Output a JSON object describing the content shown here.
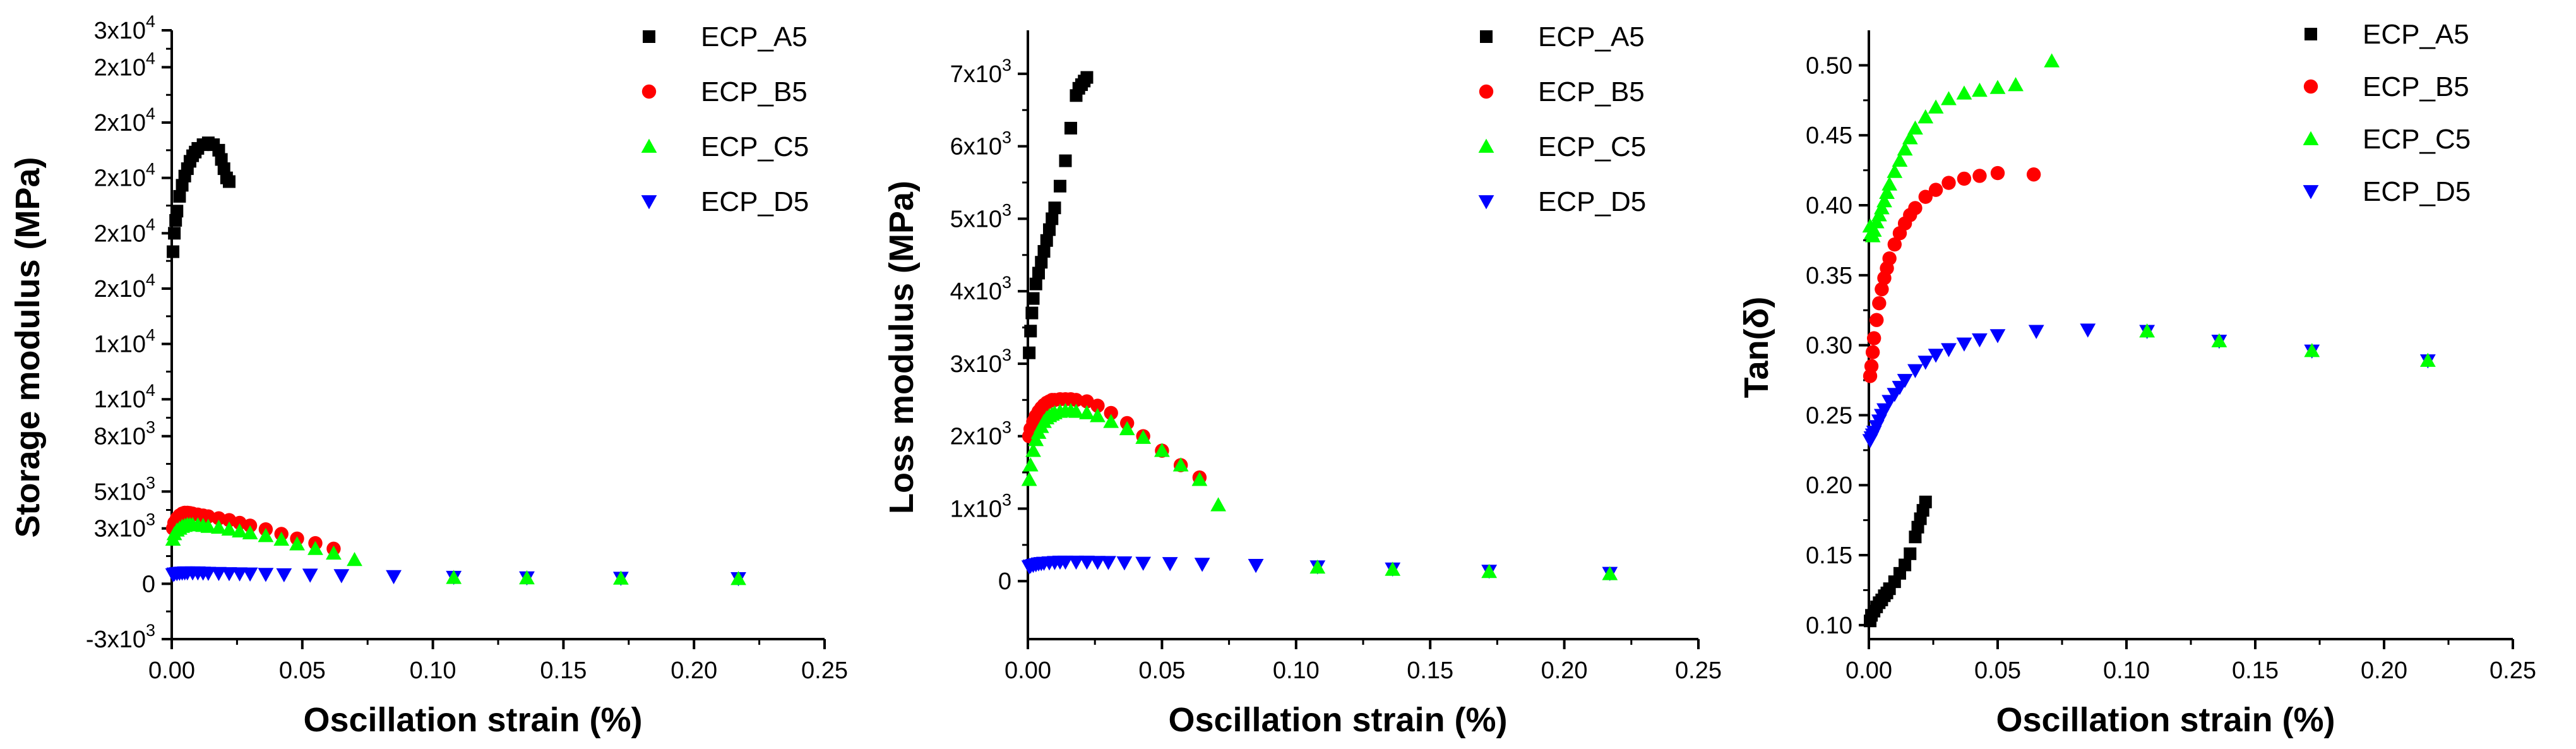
{
  "chart_data": [
    {
      "type": "scatter",
      "id": "storage",
      "title": "",
      "xlabel": "Oscillation strain (%)",
      "ylabel": "Storage modulus (MPa)",
      "xlim": [
        0,
        0.25
      ],
      "ylim": [
        -3000,
        30000
      ],
      "x_ticks": [
        0.0,
        0.05,
        0.1,
        0.15,
        0.2,
        0.25
      ],
      "x_tick_labels": [
        "0.00",
        "0.05",
        "0.10",
        "0.15",
        "0.20",
        "0.25"
      ],
      "y_ticks": [
        -3000,
        0,
        3000,
        5000,
        8000,
        10000,
        13000,
        16000,
        19000,
        22000,
        25000,
        28000,
        30000
      ],
      "y_tick_labels": [
        {
          "base": "-3x10",
          "exp": "3"
        },
        {
          "base": "0",
          "exp": ""
        },
        {
          "base": "3x10",
          "exp": "3"
        },
        {
          "base": "5x10",
          "exp": "3"
        },
        {
          "base": "8x10",
          "exp": "3"
        },
        {
          "base": "1x10",
          "exp": "4"
        },
        {
          "base": "1x10",
          "exp": "4"
        },
        {
          "base": "2x10",
          "exp": "4"
        },
        {
          "base": "2x10",
          "exp": "4"
        },
        {
          "base": "2x10",
          "exp": "4"
        },
        {
          "base": "2x10",
          "exp": "4"
        },
        {
          "base": "2x10",
          "exp": "4"
        },
        {
          "base": "3x10",
          "exp": "4"
        }
      ],
      "legend_position": "top-right",
      "series": [
        {
          "name": "ECP_A5",
          "color": "#000000",
          "marker": "square",
          "x": [
            0.0005,
            0.001,
            0.0015,
            0.002,
            0.003,
            0.004,
            0.005,
            0.006,
            0.007,
            0.008,
            0.009,
            0.01,
            0.012,
            0.014,
            0.016,
            0.018,
            0.019,
            0.02,
            0.021,
            0.022
          ],
          "y": [
            18000,
            19000,
            19700,
            20200,
            21000,
            21600,
            22100,
            22500,
            22900,
            23200,
            23400,
            23600,
            23800,
            23900,
            23800,
            23500,
            23000,
            22500,
            22000,
            21800
          ]
        },
        {
          "name": "ECP_B5",
          "color": "#ff0000",
          "marker": "circle",
          "x": [
            0.0005,
            0.001,
            0.002,
            0.003,
            0.004,
            0.005,
            0.006,
            0.007,
            0.008,
            0.01,
            0.012,
            0.014,
            0.018,
            0.022,
            0.026,
            0.03,
            0.036,
            0.042,
            0.048,
            0.055,
            0.062
          ],
          "y": [
            3000,
            3300,
            3550,
            3700,
            3800,
            3850,
            3850,
            3830,
            3800,
            3750,
            3700,
            3650,
            3550,
            3450,
            3300,
            3150,
            2950,
            2700,
            2450,
            2200,
            1900
          ]
        },
        {
          "name": "ECP_C5",
          "color": "#00ff00",
          "marker": "triangle-up",
          "x": [
            0.0005,
            0.001,
            0.002,
            0.003,
            0.004,
            0.005,
            0.006,
            0.007,
            0.008,
            0.01,
            0.012,
            0.014,
            0.018,
            0.022,
            0.026,
            0.03,
            0.036,
            0.042,
            0.048,
            0.055,
            0.062,
            0.07
          ],
          "y": [
            2400,
            2700,
            2900,
            3000,
            3100,
            3150,
            3200,
            3200,
            3200,
            3180,
            3150,
            3100,
            3050,
            2950,
            2850,
            2750,
            2600,
            2400,
            2150,
            1900,
            1650,
            1300
          ]
        },
        {
          "name": "ECP_D5",
          "color": "#0000ff",
          "marker": "triangle-down",
          "x": [
            0.0005,
            0.001,
            0.002,
            0.003,
            0.004,
            0.005,
            0.006,
            0.008,
            0.01,
            0.012,
            0.014,
            0.018,
            0.022,
            0.026,
            0.03,
            0.036,
            0.043,
            0.053,
            0.065,
            0.085,
            0.108,
            0.136,
            0.172,
            0.217
          ],
          "y": [
            500,
            540,
            560,
            580,
            590,
            600,
            600,
            600,
            600,
            590,
            580,
            570,
            560,
            550,
            540,
            520,
            500,
            480,
            450,
            400,
            360,
            330,
            310,
            290
          ]
        },
        {
          "name": "",
          "color": "#00ff00",
          "marker": "triangle-up",
          "legend": false,
          "x": [
            0.108,
            0.136,
            0.172,
            0.217
          ],
          "y": [
            330,
            310,
            290,
            270
          ]
        }
      ]
    },
    {
      "type": "scatter",
      "id": "loss",
      "title": "",
      "xlabel": "Oscillation strain (%)",
      "ylabel": "Loss modulus (MPa)",
      "xlim": [
        0,
        0.25
      ],
      "ylim": [
        -800,
        7600
      ],
      "x_ticks": [
        0.0,
        0.05,
        0.1,
        0.15,
        0.2,
        0.25
      ],
      "x_tick_labels": [
        "0.00",
        "0.05",
        "0.10",
        "0.15",
        "0.20",
        "0.25"
      ],
      "y_ticks": [
        0,
        1000,
        2000,
        3000,
        4000,
        5000,
        6000,
        7000
      ],
      "y_tick_labels": [
        {
          "base": "0",
          "exp": ""
        },
        {
          "base": "1x10",
          "exp": "3"
        },
        {
          "base": "2x10",
          "exp": "3"
        },
        {
          "base": "3x10",
          "exp": "3"
        },
        {
          "base": "4x10",
          "exp": "3"
        },
        {
          "base": "5x10",
          "exp": "3"
        },
        {
          "base": "6x10",
          "exp": "3"
        },
        {
          "base": "7x10",
          "exp": "3"
        }
      ],
      "legend_position": "top-right",
      "series": [
        {
          "name": "ECP_A5",
          "color": "#000000",
          "marker": "square",
          "x": [
            0.0005,
            0.001,
            0.0015,
            0.002,
            0.003,
            0.004,
            0.005,
            0.006,
            0.007,
            0.008,
            0.009,
            0.01,
            0.012,
            0.014,
            0.016,
            0.018,
            0.019,
            0.02,
            0.021,
            0.022
          ],
          "y": [
            3150,
            3450,
            3700,
            3900,
            4100,
            4250,
            4400,
            4550,
            4700,
            4850,
            5000,
            5150,
            5450,
            5800,
            6250,
            6700,
            6800,
            6850,
            6900,
            6950
          ]
        },
        {
          "name": "ECP_B5",
          "color": "#ff0000",
          "marker": "circle",
          "x": [
            0.0005,
            0.001,
            0.002,
            0.003,
            0.004,
            0.005,
            0.006,
            0.007,
            0.008,
            0.009,
            0.01,
            0.012,
            0.014,
            0.016,
            0.018,
            0.022,
            0.026,
            0.031,
            0.037,
            0.043,
            0.05,
            0.057,
            0.064
          ],
          "y": [
            2000,
            2100,
            2200,
            2280,
            2340,
            2390,
            2430,
            2460,
            2480,
            2500,
            2500,
            2510,
            2510,
            2510,
            2500,
            2480,
            2420,
            2320,
            2180,
            2000,
            1800,
            1600,
            1430
          ]
        },
        {
          "name": "ECP_C5",
          "color": "#00ff00",
          "marker": "triangle-up",
          "x": [
            0.0005,
            0.001,
            0.002,
            0.003,
            0.004,
            0.005,
            0.006,
            0.007,
            0.008,
            0.009,
            0.01,
            0.012,
            0.014,
            0.016,
            0.018,
            0.022,
            0.026,
            0.031,
            0.037,
            0.043,
            0.05,
            0.057,
            0.064,
            0.071
          ],
          "y": [
            1400,
            1600,
            1800,
            1950,
            2050,
            2130,
            2200,
            2250,
            2280,
            2300,
            2320,
            2340,
            2350,
            2350,
            2340,
            2320,
            2280,
            2200,
            2100,
            1980,
            1800,
            1600,
            1400,
            1050
          ]
        },
        {
          "name": "ECP_D5",
          "color": "#0000ff",
          "marker": "triangle-down",
          "x": [
            0.0005,
            0.001,
            0.002,
            0.003,
            0.004,
            0.005,
            0.006,
            0.008,
            0.01,
            0.012,
            0.014,
            0.018,
            0.022,
            0.026,
            0.03,
            0.036,
            0.043,
            0.053,
            0.065,
            0.085,
            0.108,
            0.136,
            0.172,
            0.217
          ],
          "y": [
            200,
            210,
            220,
            230,
            240,
            245,
            250,
            255,
            260,
            265,
            265,
            265,
            265,
            262,
            260,
            255,
            250,
            245,
            235,
            220,
            200,
            170,
            140,
            110
          ]
        },
        {
          "name": "",
          "color": "#00ff00",
          "marker": "triangle-up",
          "legend": false,
          "x": [
            0.108,
            0.136,
            0.172,
            0.217
          ],
          "y": [
            190,
            160,
            130,
            100
          ]
        }
      ]
    },
    {
      "type": "scatter",
      "id": "tan",
      "title": "",
      "xlabel": "Oscillation strain (%)",
      "ylabel": "Tan(δ)",
      "xlim": [
        0,
        0.25
      ],
      "ylim": [
        0.09,
        0.525
      ],
      "x_ticks": [
        0.0,
        0.05,
        0.1,
        0.15,
        0.2,
        0.25
      ],
      "x_tick_labels": [
        "0.00",
        "0.05",
        "0.10",
        "0.15",
        "0.20",
        "0.25"
      ],
      "y_ticks": [
        0.1,
        0.15,
        0.2,
        0.25,
        0.3,
        0.35,
        0.4,
        0.45,
        0.5
      ],
      "y_tick_labels": [
        {
          "base": "0.10",
          "exp": ""
        },
        {
          "base": "0.15",
          "exp": ""
        },
        {
          "base": "0.20",
          "exp": ""
        },
        {
          "base": "0.25",
          "exp": ""
        },
        {
          "base": "0.30",
          "exp": ""
        },
        {
          "base": "0.35",
          "exp": ""
        },
        {
          "base": "0.40",
          "exp": ""
        },
        {
          "base": "0.45",
          "exp": ""
        },
        {
          "base": "0.50",
          "exp": ""
        }
      ],
      "legend_position": "top-right",
      "series": [
        {
          "name": "ECP_A5",
          "color": "#000000",
          "marker": "square",
          "x": [
            0.0005,
            0.001,
            0.002,
            0.003,
            0.004,
            0.005,
            0.006,
            0.007,
            0.008,
            0.01,
            0.012,
            0.014,
            0.016,
            0.018,
            0.019,
            0.02,
            0.021,
            0.022
          ],
          "y": [
            0.103,
            0.107,
            0.11,
            0.113,
            0.116,
            0.118,
            0.121,
            0.123,
            0.126,
            0.131,
            0.137,
            0.143,
            0.151,
            0.163,
            0.17,
            0.176,
            0.182,
            0.188
          ]
        },
        {
          "name": "ECP_B5",
          "color": "#ff0000",
          "marker": "circle",
          "x": [
            0.0005,
            0.001,
            0.0015,
            0.002,
            0.003,
            0.004,
            0.005,
            0.006,
            0.007,
            0.008,
            0.01,
            0.012,
            0.014,
            0.016,
            0.018,
            0.022,
            0.026,
            0.031,
            0.037,
            0.043,
            0.05,
            0.064
          ],
          "y": [
            0.278,
            0.285,
            0.295,
            0.305,
            0.318,
            0.33,
            0.34,
            0.348,
            0.355,
            0.362,
            0.372,
            0.38,
            0.387,
            0.393,
            0.398,
            0.406,
            0.411,
            0.416,
            0.419,
            0.421,
            0.423,
            0.422
          ]
        },
        {
          "name": "ECP_C5",
          "color": "#00ff00",
          "marker": "triangle-up",
          "x": [
            0.0005,
            0.001,
            0.0015,
            0.002,
            0.003,
            0.004,
            0.005,
            0.006,
            0.007,
            0.008,
            0.01,
            0.012,
            0.014,
            0.016,
            0.018,
            0.022,
            0.026,
            0.031,
            0.037,
            0.043,
            0.05,
            0.057,
            0.071
          ],
          "y": [
            0.385,
            0.38,
            0.378,
            0.382,
            0.388,
            0.393,
            0.398,
            0.403,
            0.409,
            0.415,
            0.424,
            0.432,
            0.44,
            0.448,
            0.455,
            0.463,
            0.47,
            0.476,
            0.48,
            0.482,
            0.484,
            0.486,
            0.503
          ]
        },
        {
          "name": "ECP_D5",
          "color": "#0000ff",
          "marker": "triangle-down",
          "x": [
            0.0005,
            0.001,
            0.0015,
            0.002,
            0.003,
            0.004,
            0.005,
            0.006,
            0.008,
            0.01,
            0.012,
            0.014,
            0.018,
            0.022,
            0.026,
            0.031,
            0.037,
            0.043,
            0.05,
            0.065,
            0.085,
            0.108,
            0.136,
            0.172,
            0.217
          ],
          "y": [
            0.232,
            0.234,
            0.236,
            0.238,
            0.242,
            0.246,
            0.25,
            0.254,
            0.26,
            0.265,
            0.27,
            0.275,
            0.282,
            0.288,
            0.293,
            0.297,
            0.301,
            0.304,
            0.307,
            0.31,
            0.311,
            0.31,
            0.303,
            0.296,
            0.289
          ]
        },
        {
          "name": "",
          "color": "#00ff00",
          "marker": "triangle-up",
          "legend": false,
          "x": [
            0.108,
            0.136,
            0.172,
            0.217
          ],
          "y": [
            0.31,
            0.303,
            0.296,
            0.289
          ]
        }
      ]
    }
  ]
}
